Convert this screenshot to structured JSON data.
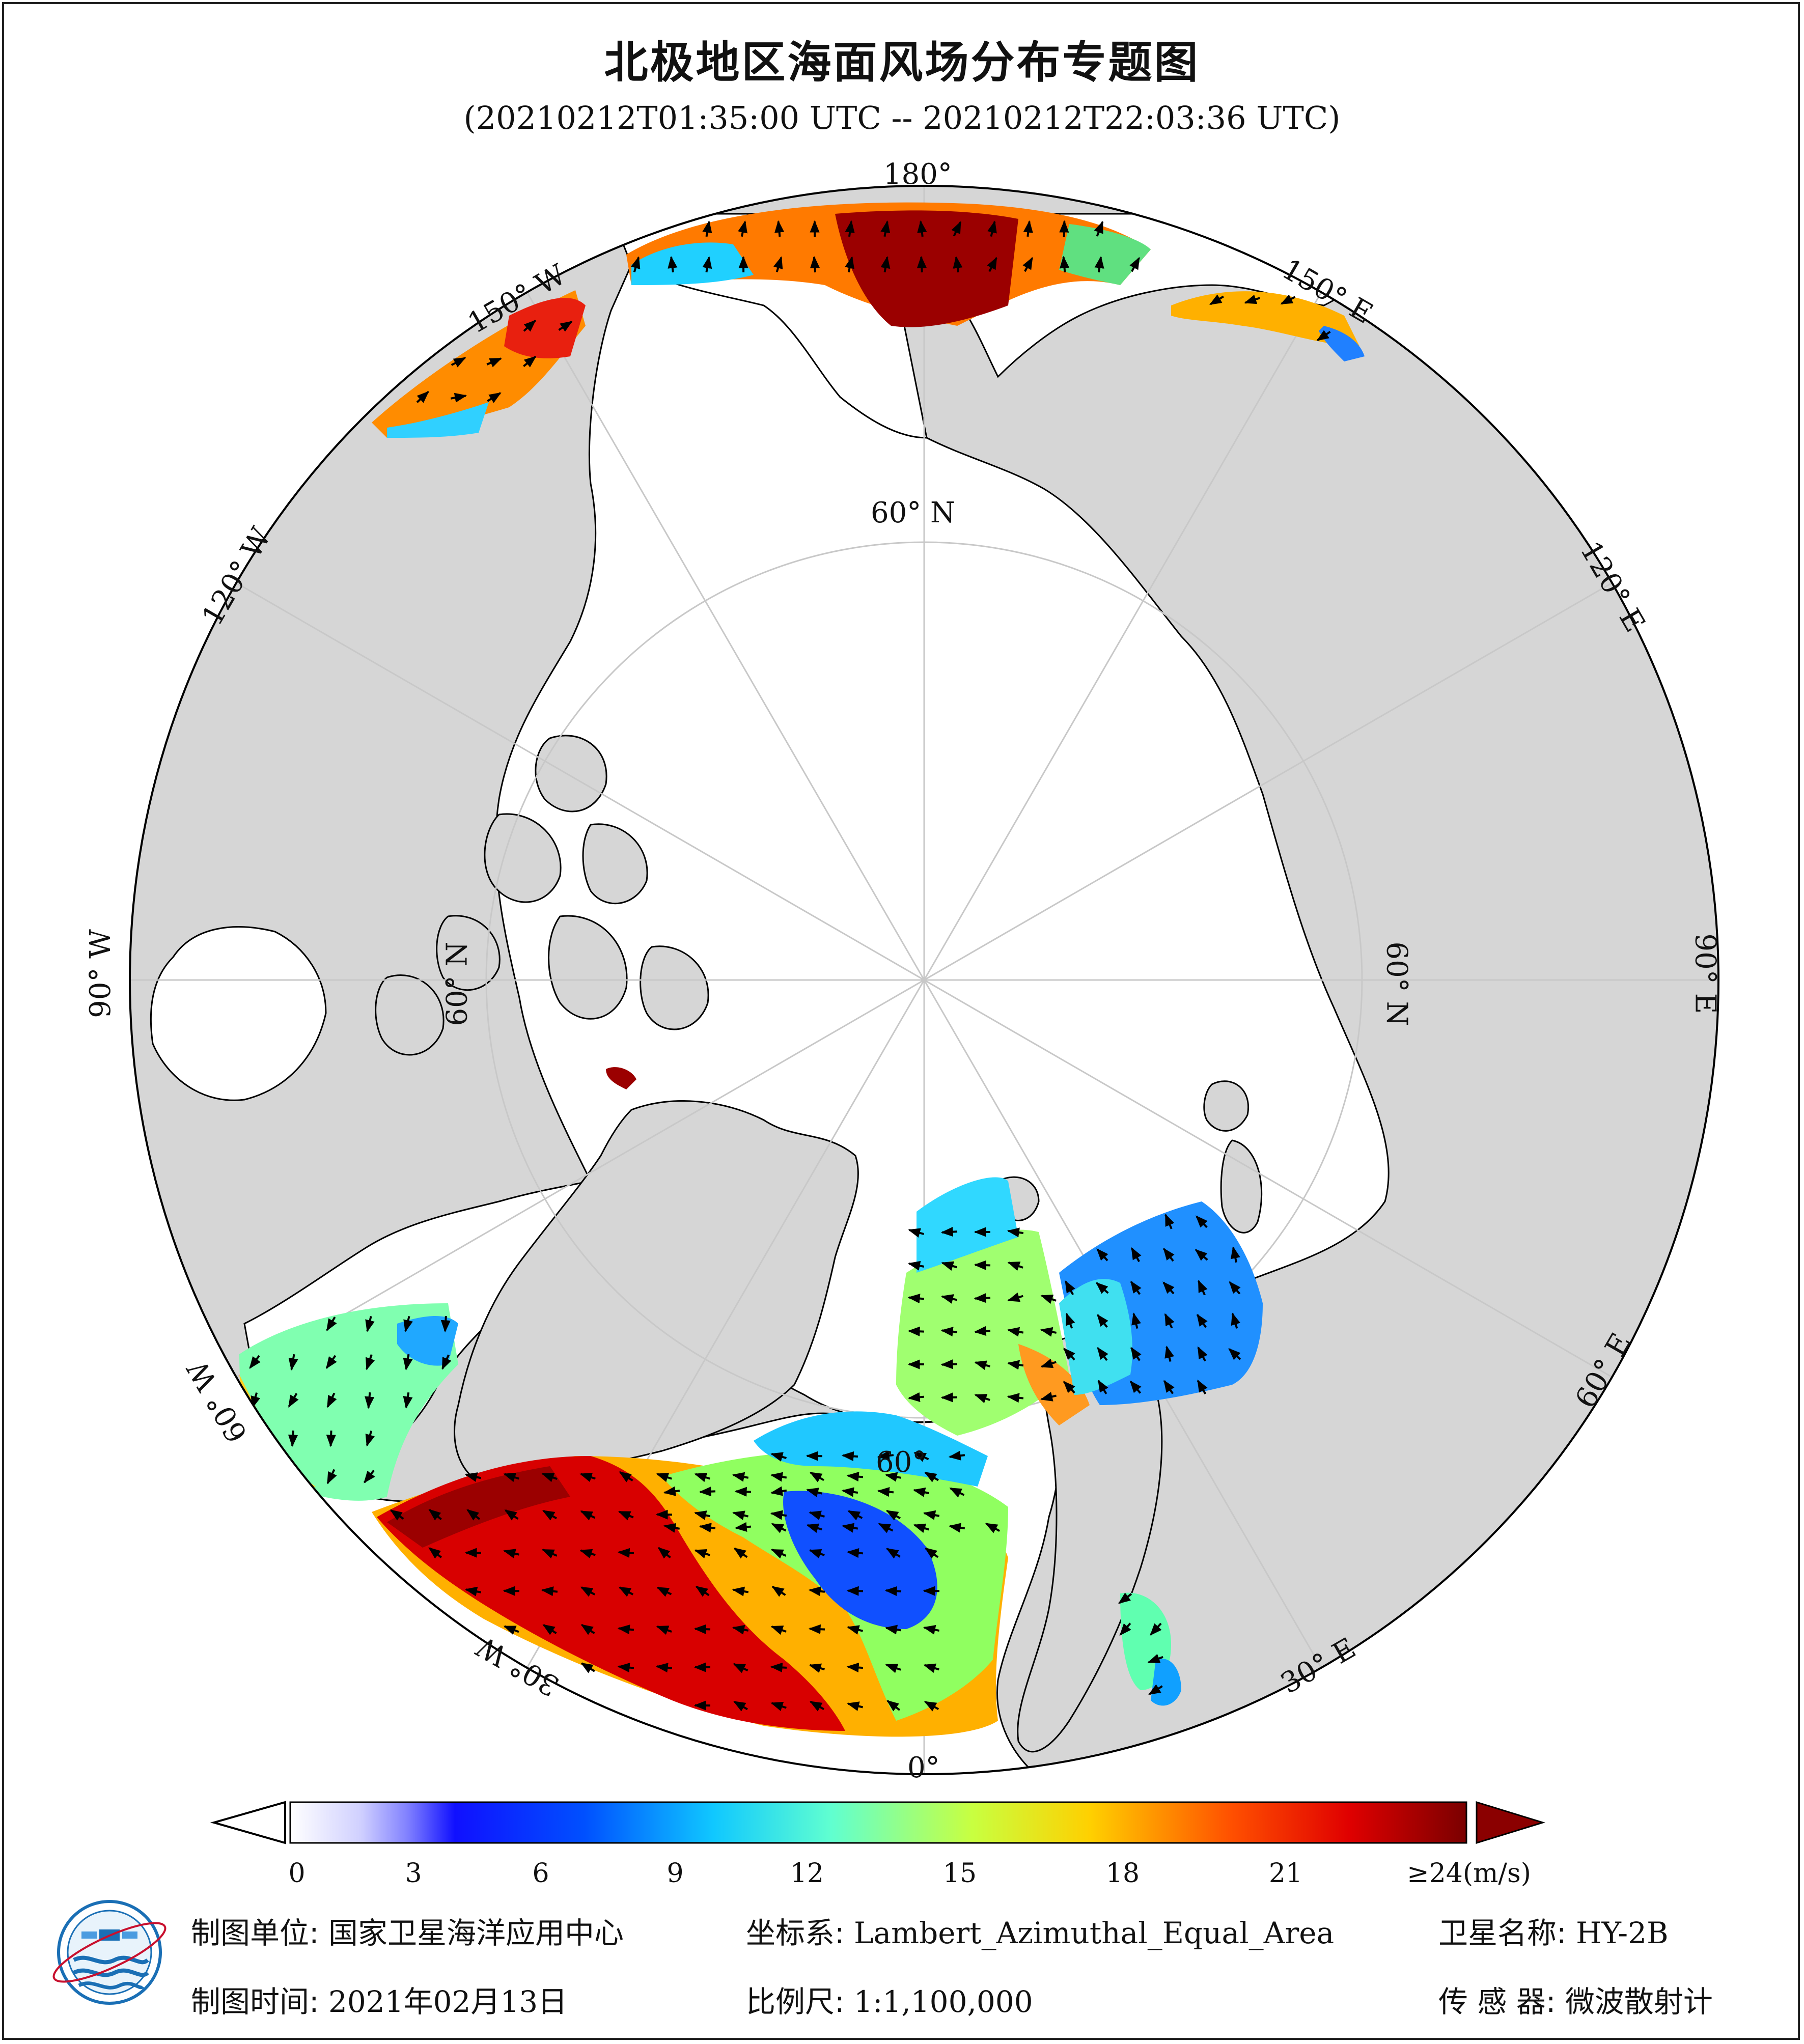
{
  "title": "北极地区海面风场分布专题图",
  "subtitle": "(20210212T01:35:00 UTC -- 20210212T22:03:36 UTC)",
  "graticule": {
    "lon_labels": [
      "180°",
      "150° E",
      "120° E",
      "90° E",
      "60° E",
      "30° E",
      "0°",
      "30° W",
      "60° W",
      "90° W",
      "120° W",
      "150° W"
    ],
    "lat_labels": [
      "60° N",
      "60° N",
      "60° N",
      "60°"
    ]
  },
  "colorbar": {
    "ticks": [
      "0",
      "3",
      "6",
      "9",
      "12",
      "15",
      "18",
      "21",
      "≥24"
    ],
    "unit": "(m/s)",
    "colors": [
      "#ffffff",
      "#b8b8ff",
      "#2020ff",
      "#0060ff",
      "#20c0ff",
      "#60ffd0",
      "#c8ff40",
      "#ffd000",
      "#ff6000",
      "#e00000",
      "#8b0000"
    ]
  },
  "footer": {
    "org_label": "制图单位:",
    "org_value": "国家卫星海洋应用中心",
    "crs_label": "坐标系:",
    "crs_value": "Lambert_Azimuthal_Equal_Area",
    "sat_label": "卫星名称:",
    "sat_value": "HY-2B",
    "date_label": "制图时间:",
    "date_value": "2021年02月13日",
    "scale_label": "比例尺:",
    "scale_value": "1:1,100,000",
    "sensor_label": "传 感 器:",
    "sensor_value": "微波散射计"
  },
  "colors": {
    "land": "#d6d6d6",
    "ice": "#ffffff",
    "coast": "#000000",
    "grid": "#c8c8c8"
  }
}
